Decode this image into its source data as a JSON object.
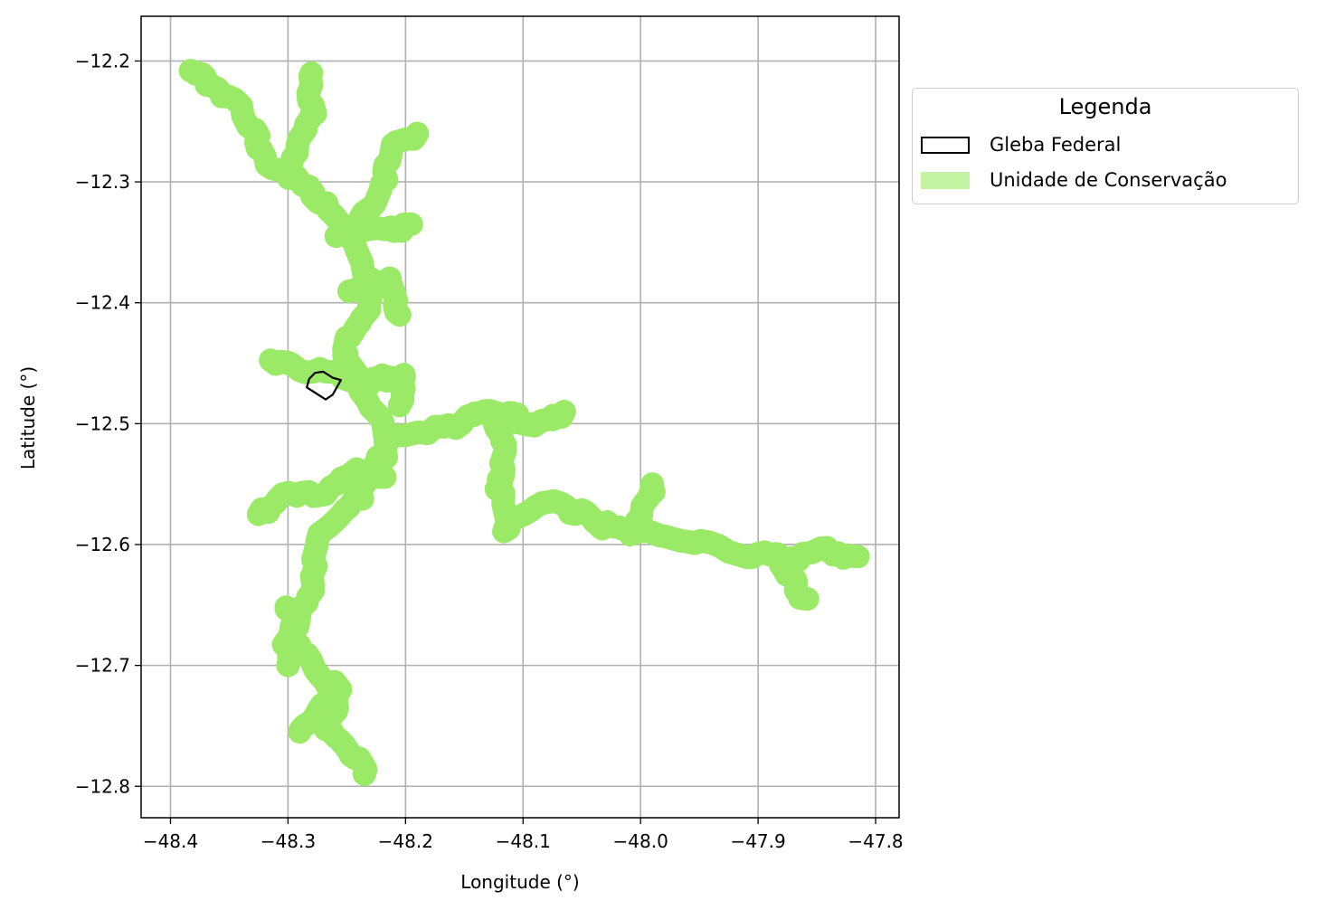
{
  "chart_data": {
    "type": "map",
    "xlabel": "Longitude (°)",
    "ylabel": "Latitude (°)",
    "xlim": [
      -48.425,
      -47.78
    ],
    "ylim": [
      -12.826,
      -12.163
    ],
    "grid": true,
    "x_ticks": [
      -48.4,
      -48.3,
      -48.2,
      -48.1,
      -48.0,
      -47.9,
      -47.8
    ],
    "y_ticks": [
      -12.2,
      -12.3,
      -12.4,
      -12.5,
      -12.6,
      -12.7,
      -12.8
    ],
    "x_tick_labels": [
      "−48.4",
      "−48.3",
      "−48.2",
      "−48.1",
      "−48.0",
      "−47.9",
      "−47.8"
    ],
    "y_tick_labels": [
      "−12.2",
      "−12.3",
      "−12.4",
      "−12.5",
      "−12.6",
      "−12.7",
      "−12.8"
    ],
    "colors": {
      "conservation_unit": "#9bea67",
      "legend_conservation_swatch": "#c4f3a4",
      "gleba_outline": "#000000",
      "grid": "#b0b0b0"
    },
    "legend": {
      "title": "Legenda",
      "placement": "outside-upper-right",
      "entries": [
        "Gleba Federal",
        "Unidade de Conservação"
      ]
    },
    "conservation_unit_paths": [
      [
        [
          -48.383,
          -12.207
        ],
        [
          -48.37,
          -12.215
        ],
        [
          -48.35,
          -12.23
        ],
        [
          -48.33,
          -12.26
        ],
        [
          -48.315,
          -12.285
        ],
        [
          -48.29,
          -12.3
        ],
        [
          -48.265,
          -12.32
        ],
        [
          -48.25,
          -12.345
        ],
        [
          -48.235,
          -12.365
        ],
        [
          -48.228,
          -12.39
        ],
        [
          -48.238,
          -12.42
        ],
        [
          -48.255,
          -12.445
        ],
        [
          -48.235,
          -12.47
        ],
        [
          -48.22,
          -12.5
        ],
        [
          -48.22,
          -12.53
        ],
        [
          -48.24,
          -12.56
        ],
        [
          -48.27,
          -12.59
        ],
        [
          -48.28,
          -12.62
        ],
        [
          -48.285,
          -12.65
        ],
        [
          -48.3,
          -12.68
        ],
        [
          -48.28,
          -12.7
        ],
        [
          -48.255,
          -12.72
        ],
        [
          -48.27,
          -12.755
        ],
        [
          -48.245,
          -12.77
        ],
        [
          -48.235,
          -12.79
        ]
      ],
      [
        [
          -48.3,
          -12.3
        ],
        [
          -48.29,
          -12.27
        ],
        [
          -48.28,
          -12.24
        ],
        [
          -48.28,
          -12.21
        ]
      ],
      [
        [
          -48.235,
          -12.33
        ],
        [
          -48.22,
          -12.3
        ],
        [
          -48.21,
          -12.27
        ],
        [
          -48.19,
          -12.26
        ]
      ],
      [
        [
          -48.26,
          -12.345
        ],
        [
          -48.24,
          -12.34
        ],
        [
          -48.21,
          -12.34
        ],
        [
          -48.195,
          -12.335
        ]
      ],
      [
        [
          -48.245,
          -12.39
        ],
        [
          -48.215,
          -12.38
        ],
        [
          -48.205,
          -12.41
        ]
      ],
      [
        [
          -48.315,
          -12.45
        ],
        [
          -48.29,
          -12.455
        ],
        [
          -48.255,
          -12.46
        ],
        [
          -48.225,
          -12.465
        ],
        [
          -48.205,
          -12.46
        ],
        [
          -48.205,
          -12.485
        ]
      ],
      [
        [
          -48.215,
          -12.51
        ],
        [
          -48.175,
          -12.505
        ],
        [
          -48.145,
          -12.495
        ],
        [
          -48.125,
          -12.49
        ],
        [
          -48.105,
          -12.495
        ],
        [
          -48.085,
          -12.5
        ],
        [
          -48.065,
          -12.49
        ]
      ],
      [
        [
          -48.125,
          -12.5
        ],
        [
          -48.115,
          -12.53
        ],
        [
          -48.12,
          -12.56
        ],
        [
          -48.115,
          -12.59
        ],
        [
          -48.09,
          -12.565
        ],
        [
          -48.06,
          -12.57
        ],
        [
          -48.045,
          -12.575
        ],
        [
          -48.03,
          -12.585
        ],
        [
          -48.005,
          -12.59
        ],
        [
          -47.975,
          -12.595
        ],
        [
          -47.94,
          -12.6
        ],
        [
          -47.9,
          -12.61
        ],
        [
          -47.87,
          -12.61
        ],
        [
          -47.84,
          -12.605
        ],
        [
          -47.815,
          -12.61
        ]
      ],
      [
        [
          -48.215,
          -12.545
        ],
        [
          -48.245,
          -12.54
        ],
        [
          -48.275,
          -12.56
        ],
        [
          -48.31,
          -12.56
        ],
        [
          -48.325,
          -12.575
        ]
      ],
      [
        [
          -48.305,
          -12.65
        ],
        [
          -48.29,
          -12.665
        ],
        [
          -48.3,
          -12.7
        ]
      ],
      [
        [
          -48.27,
          -12.735
        ],
        [
          -48.29,
          -12.755
        ]
      ],
      [
        [
          -47.88,
          -12.615
        ],
        [
          -47.87,
          -12.635
        ],
        [
          -47.858,
          -12.645
        ]
      ],
      [
        [
          -48.005,
          -12.59
        ],
        [
          -47.995,
          -12.57
        ],
        [
          -47.99,
          -12.55
        ]
      ]
    ],
    "gleba_federal_polygon": [
      [
        -48.282,
        -12.463
      ],
      [
        -48.277,
        -12.458
      ],
      [
        -48.27,
        -12.457
      ],
      [
        -48.262,
        -12.462
      ],
      [
        -48.255,
        -12.464
      ],
      [
        -48.262,
        -12.476
      ],
      [
        -48.268,
        -12.48
      ],
      [
        -48.276,
        -12.475
      ],
      [
        -48.284,
        -12.47
      ],
      [
        -48.282,
        -12.463
      ]
    ]
  }
}
